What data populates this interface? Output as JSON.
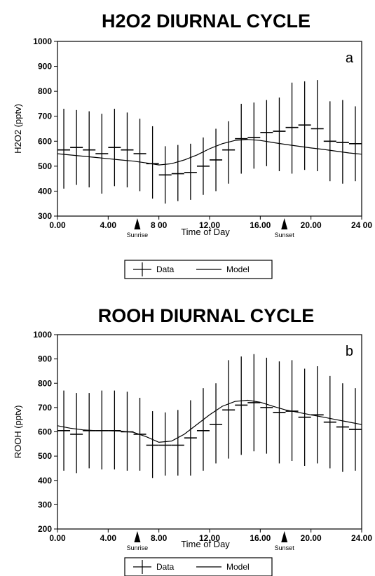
{
  "chart_data": [
    {
      "type": "line",
      "title": "H2O2 DIURNAL CYCLE",
      "panel_label": "a",
      "xlabel": "Time of Day",
      "ylabel": "H2O2  (pptv)",
      "xlim": [
        0,
        24
      ],
      "ylim": [
        300,
        1000
      ],
      "x_ticks": [
        0,
        4,
        8,
        12,
        16,
        20,
        24
      ],
      "x_tick_labels": [
        "0.00",
        "4.00",
        "8 00",
        "12.00",
        "16.00",
        "20.00",
        "24 00"
      ],
      "y_ticks": [
        300,
        400,
        500,
        600,
        700,
        800,
        900,
        1000
      ],
      "y_tick_labels": [
        "300",
        "400",
        "500",
        "600",
        "700",
        "800",
        "900",
        "1000"
      ],
      "grid": false,
      "legend": "below-center",
      "markers": [
        {
          "label": "Sunrise",
          "x": 6.3
        },
        {
          "label": "Sunset",
          "x": 17.9
        }
      ],
      "series": [
        {
          "name": "Data",
          "style": "errorbar",
          "x": [
            0.5,
            1.5,
            2.5,
            3.5,
            4.5,
            5.5,
            6.5,
            7.5,
            8.5,
            9.5,
            10.5,
            11.5,
            12.5,
            13.5,
            14.5,
            15.5,
            16.5,
            17.5,
            18.5,
            19.5,
            20.5,
            21.5,
            22.5,
            23.5
          ],
          "values": [
            565,
            575,
            565,
            550,
            575,
            565,
            550,
            510,
            465,
            470,
            475,
            500,
            525,
            565,
            610,
            615,
            635,
            640,
            655,
            665,
            650,
            600,
            595,
            590
          ],
          "low": [
            410,
            425,
            415,
            390,
            420,
            415,
            400,
            370,
            350,
            360,
            365,
            385,
            400,
            430,
            470,
            490,
            500,
            480,
            470,
            485,
            480,
            440,
            430,
            440
          ],
          "high": [
            730,
            725,
            720,
            710,
            730,
            715,
            690,
            660,
            580,
            585,
            590,
            615,
            650,
            680,
            750,
            755,
            765,
            775,
            835,
            840,
            845,
            760,
            765,
            740
          ]
        },
        {
          "name": "Model",
          "style": "line",
          "x": [
            0,
            1,
            2,
            3,
            4,
            5,
            6,
            7,
            8,
            9,
            10,
            11,
            12,
            13,
            14,
            15,
            16,
            17,
            18,
            19,
            20,
            21,
            22,
            23,
            24
          ],
          "values": [
            550,
            545,
            540,
            535,
            530,
            525,
            520,
            513,
            505,
            510,
            525,
            545,
            570,
            590,
            603,
            607,
            603,
            595,
            587,
            580,
            573,
            567,
            560,
            553,
            548
          ]
        }
      ]
    },
    {
      "type": "line",
      "title": "ROOH DIURNAL CYCLE",
      "panel_label": "b",
      "xlabel": "Time of Day",
      "ylabel": "ROOH  (pptv)",
      "xlim": [
        0,
        24
      ],
      "ylim": [
        200,
        1000
      ],
      "x_ticks": [
        0,
        4,
        8,
        12,
        16,
        20,
        24
      ],
      "x_tick_labels": [
        "0.00",
        "4.00",
        "8.00",
        "12.00",
        "16.00",
        "20.00",
        "24.00"
      ],
      "y_ticks": [
        200,
        300,
        400,
        500,
        600,
        700,
        800,
        900,
        1000
      ],
      "y_tick_labels": [
        "200",
        "300",
        "400",
        "500",
        "600",
        "700",
        "800",
        "900",
        "1000"
      ],
      "grid": false,
      "legend": "below-center",
      "markers": [
        {
          "label": "Sunrise",
          "x": 6.3
        },
        {
          "label": "Sunset",
          "x": 17.9
        }
      ],
      "series": [
        {
          "name": "Data",
          "style": "errorbar",
          "x": [
            0.5,
            1.5,
            2.5,
            3.5,
            4.5,
            5.5,
            6.5,
            7.5,
            8.5,
            9.5,
            10.5,
            11.5,
            12.5,
            13.5,
            14.5,
            15.5,
            16.5,
            17.5,
            18.5,
            19.5,
            20.5,
            21.5,
            22.5,
            23.5
          ],
          "values": [
            605,
            590,
            605,
            605,
            605,
            600,
            590,
            545,
            545,
            545,
            575,
            605,
            630,
            690,
            710,
            720,
            700,
            680,
            685,
            660,
            670,
            640,
            620,
            610
          ],
          "low": [
            440,
            430,
            450,
            445,
            445,
            440,
            440,
            410,
            420,
            420,
            420,
            440,
            470,
            490,
            505,
            520,
            510,
            470,
            480,
            460,
            470,
            450,
            435,
            440
          ],
          "high": [
            770,
            760,
            760,
            770,
            770,
            765,
            740,
            685,
            680,
            690,
            730,
            780,
            800,
            895,
            910,
            920,
            905,
            890,
            895,
            860,
            870,
            830,
            800,
            780
          ]
        },
        {
          "name": "Model",
          "style": "line",
          "x": [
            0,
            1,
            2,
            3,
            4,
            5,
            6,
            7,
            8,
            9,
            10,
            11,
            12,
            13,
            14,
            15,
            16,
            17,
            18,
            19,
            20,
            21,
            22,
            23,
            24
          ],
          "values": [
            625,
            615,
            608,
            605,
            605,
            603,
            598,
            580,
            557,
            562,
            590,
            630,
            670,
            705,
            725,
            730,
            722,
            705,
            690,
            680,
            670,
            660,
            650,
            640,
            630
          ]
        }
      ]
    }
  ]
}
